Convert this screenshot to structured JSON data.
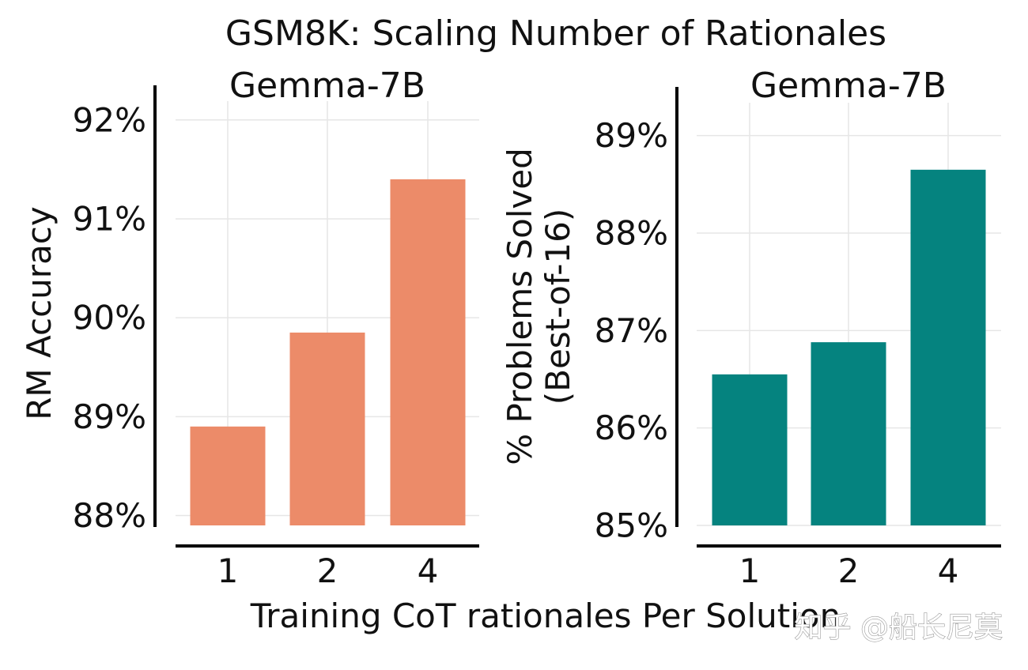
{
  "suptitle": "GSM8K: Scaling Number of Rationales",
  "xlabel": "Training CoT rationales Per Solution",
  "watermark": "知乎 @船长尼莫",
  "chart_data": [
    {
      "type": "bar",
      "title": "Gemma-7B",
      "categories": [
        "1",
        "2",
        "4"
      ],
      "values": [
        88.9,
        89.85,
        91.4
      ],
      "ylabel": "RM Accuracy",
      "ylim": [
        87.9,
        92.35
      ],
      "yticks": [
        88,
        89,
        90,
        91,
        92
      ],
      "ytick_labels": [
        "88%",
        "89%",
        "90%",
        "91%",
        "92%"
      ],
      "grid": true,
      "color": "#ec8b69"
    },
    {
      "type": "bar",
      "title": "Gemma-7B",
      "categories": [
        "1",
        "2",
        "4"
      ],
      "values": [
        86.55,
        86.88,
        88.65
      ],
      "ylabel_lines": [
        "% Problems Solved",
        "(Best-of-16)"
      ],
      "ylim": [
        85.0,
        89.5
      ],
      "yticks": [
        85,
        86,
        87,
        88,
        89
      ],
      "ytick_labels": [
        "85%",
        "86%",
        "87%",
        "88%",
        "89%"
      ],
      "grid": true,
      "color": "#05837f"
    }
  ]
}
